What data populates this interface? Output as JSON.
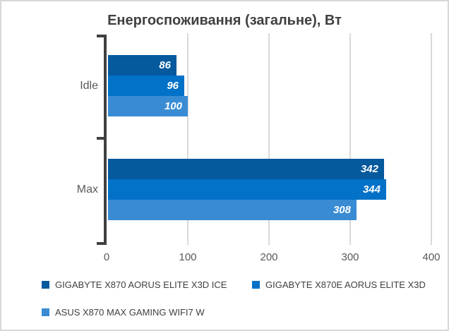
{
  "chart_data": {
    "type": "bar",
    "orientation": "horizontal",
    "title": "Енергоспоживання (загальне), Вт",
    "categories": [
      "Idle",
      "Max"
    ],
    "series": [
      {
        "name": "GIGABYTE X870 AORUS ELITE X3D ICE",
        "color": "#05599D",
        "values": [
          86,
          342
        ]
      },
      {
        "name": "GIGABYTE X870E AORUS ELITE X3D",
        "color": "#0271C8",
        "values": [
          96,
          344
        ]
      },
      {
        "name": "ASUS X870 MAX GAMING WIFI7 W",
        "color": "#398CD4",
        "values": [
          100,
          308
        ]
      }
    ],
    "xlabel": "",
    "ylabel": "",
    "xlim": [
      0,
      400
    ],
    "xticks": [
      0,
      100,
      200,
      300,
      400
    ],
    "grid": "vertical-only",
    "legend_position": "bottom",
    "value_labels_inside_bars": true,
    "colors": {
      "title": "#404040",
      "axis": "#404040",
      "gridline": "#d9d9d9",
      "tick_labels": "#595959",
      "category_labels": "#595959",
      "value_labels": "#ffffff",
      "legend_text": "#404040",
      "frame_border": "#d8d8d8",
      "background": "#ffffff"
    }
  }
}
